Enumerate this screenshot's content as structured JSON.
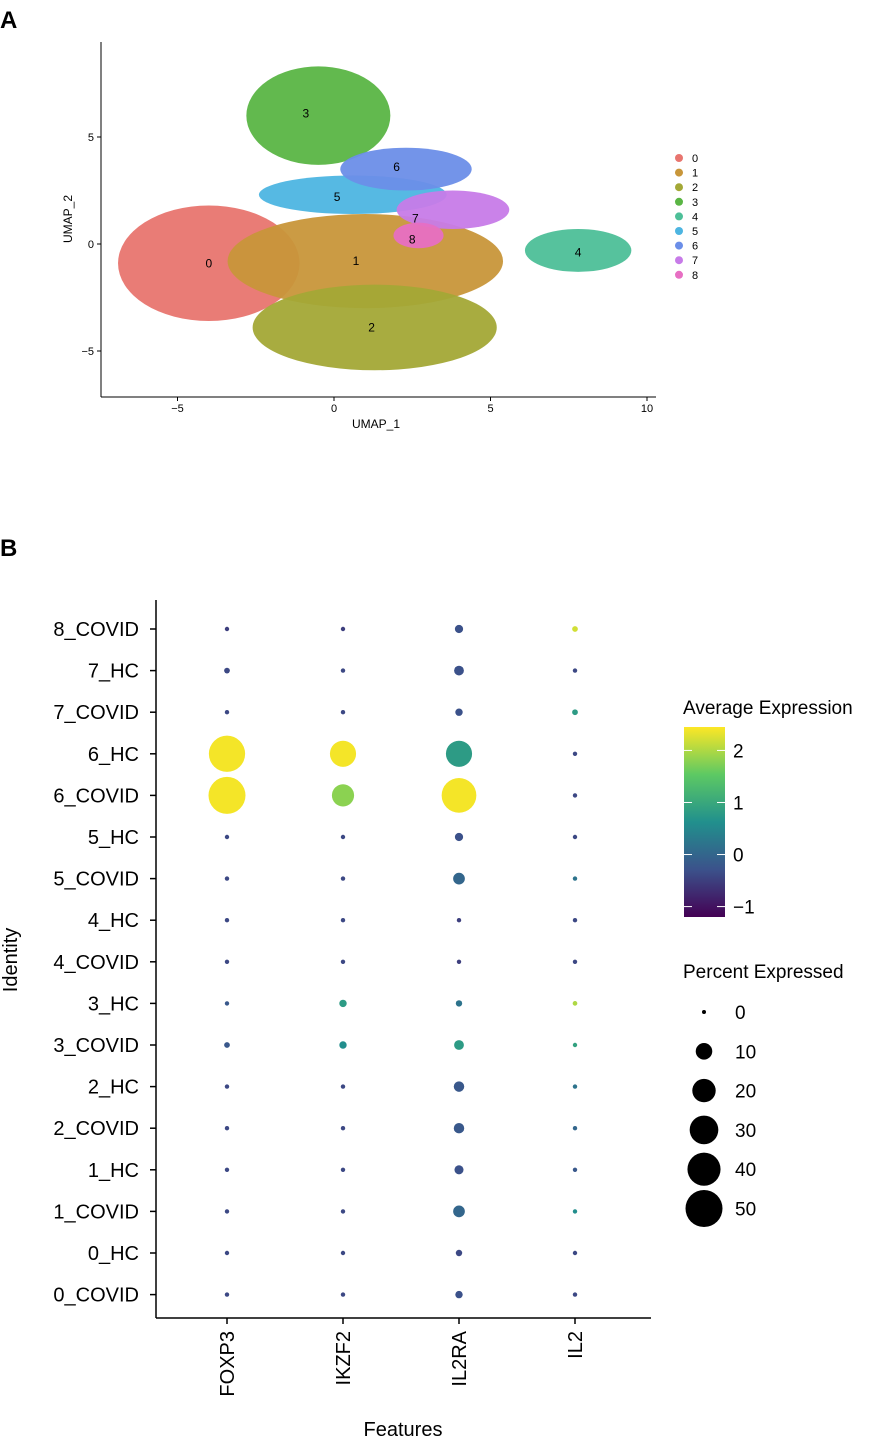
{
  "panel_a": {
    "label": "A",
    "chart_data": {
      "type": "scatter",
      "title": "",
      "xlabel": "UMAP_1",
      "ylabel": "UMAP_2",
      "xlim": [
        -7.5,
        10.5
      ],
      "ylim": [
        -7,
        9.5
      ],
      "xticks": [
        -5,
        0,
        5,
        10
      ],
      "yticks": [
        -5,
        0,
        5
      ],
      "legend_position": "right",
      "clusters": [
        {
          "id": "0",
          "color": "#e8756f",
          "cx": -4.0,
          "cy": -0.9,
          "rx": 2.9,
          "ry": 2.7,
          "label_x": -4.0,
          "label_y": -0.9
        },
        {
          "id": "1",
          "color": "#c8963a",
          "cx": 1.0,
          "cy": -0.8,
          "rx": 4.4,
          "ry": 2.2,
          "label_x": 0.7,
          "label_y": -0.8
        },
        {
          "id": "2",
          "color": "#a3a836",
          "cx": 1.3,
          "cy": -3.9,
          "rx": 3.9,
          "ry": 2.0,
          "label_x": 1.2,
          "label_y": -3.9
        },
        {
          "id": "3",
          "color": "#5ab544",
          "cx": -0.5,
          "cy": 6.0,
          "rx": 2.3,
          "ry": 2.3,
          "label_x": -0.9,
          "label_y": 6.1
        },
        {
          "id": "4",
          "color": "#4dbf98",
          "cx": 7.8,
          "cy": -0.3,
          "rx": 1.7,
          "ry": 1.0,
          "label_x": 7.8,
          "label_y": -0.4
        },
        {
          "id": "5",
          "color": "#4db5e1",
          "cx": 0.6,
          "cy": 2.3,
          "rx": 3.0,
          "ry": 0.9,
          "label_x": 0.1,
          "label_y": 2.2
        },
        {
          "id": "6",
          "color": "#6b8ee8",
          "cx": 2.3,
          "cy": 3.5,
          "rx": 2.1,
          "ry": 1.0,
          "label_x": 2.0,
          "label_y": 3.6
        },
        {
          "id": "7",
          "color": "#c77be8",
          "cx": 3.8,
          "cy": 1.6,
          "rx": 1.8,
          "ry": 0.9,
          "label_x": 2.6,
          "label_y": 1.2
        },
        {
          "id": "8",
          "color": "#e76fc3",
          "cx": 2.7,
          "cy": 0.4,
          "rx": 0.8,
          "ry": 0.6,
          "label_x": 2.5,
          "label_y": 0.2
        }
      ]
    }
  },
  "panel_b": {
    "label": "B",
    "chart_data": {
      "type": "dot",
      "title": "",
      "xlabel": "Features",
      "ylabel": "Identity",
      "features": [
        "FOXP3",
        "IKZF2",
        "IL2RA",
        "IL2"
      ],
      "identities": [
        "8_COVID",
        "7_HC",
        "7_COVID",
        "6_HC",
        "6_COVID",
        "5_HC",
        "5_COVID",
        "4_HC",
        "4_COVID",
        "3_HC",
        "3_COVID",
        "2_HC",
        "2_COVID",
        "1_HC",
        "1_COVID",
        "0_HC",
        "0_COVID"
      ],
      "avg_expression": [
        [
          -0.5,
          -0.5,
          -0.3,
          2.2
        ],
        [
          -0.4,
          -0.4,
          -0.3,
          -0.4
        ],
        [
          -0.4,
          -0.4,
          -0.3,
          0.8
        ],
        [
          2.4,
          2.4,
          0.8,
          -0.4
        ],
        [
          2.4,
          1.8,
          2.4,
          -0.4
        ],
        [
          -0.4,
          -0.4,
          -0.3,
          -0.4
        ],
        [
          -0.4,
          -0.4,
          0.0,
          0.2
        ],
        [
          -0.4,
          -0.4,
          -0.5,
          -0.4
        ],
        [
          -0.4,
          -0.4,
          -0.5,
          -0.4
        ],
        [
          -0.2,
          0.8,
          0.2,
          2.0
        ],
        [
          -0.2,
          0.6,
          0.8,
          0.9
        ],
        [
          -0.4,
          -0.4,
          -0.2,
          0.2
        ],
        [
          -0.4,
          -0.4,
          -0.2,
          0.0
        ],
        [
          -0.4,
          -0.4,
          -0.3,
          -0.2
        ],
        [
          -0.4,
          -0.4,
          0.0,
          0.6
        ],
        [
          -0.4,
          -0.4,
          -0.4,
          -0.4
        ],
        [
          -0.4,
          -0.4,
          -0.3,
          -0.4
        ]
      ],
      "pct_expressed": [
        [
          0.3,
          0.3,
          2.5,
          1.2
        ],
        [
          1.2,
          0.6,
          3.5,
          0.5
        ],
        [
          0.6,
          0.6,
          2.0,
          1.2
        ],
        [
          48,
          25,
          25,
          0.3
        ],
        [
          50,
          18,
          44,
          0.3
        ],
        [
          0.6,
          0.6,
          2.5,
          0.3
        ],
        [
          0.3,
          0.3,
          5.0,
          0.6
        ],
        [
          0.2,
          0.2,
          0.3,
          0.3
        ],
        [
          0.2,
          0.2,
          0.3,
          0.3
        ],
        [
          0.6,
          2.0,
          1.5,
          0.8
        ],
        [
          1.2,
          2.0,
          3.5,
          0.3
        ],
        [
          0.6,
          0.3,
          4.0,
          0.3
        ],
        [
          0.6,
          0.6,
          4.0,
          0.3
        ],
        [
          0.6,
          0.6,
          3.0,
          0.3
        ],
        [
          0.6,
          0.6,
          5.0,
          0.3
        ],
        [
          0.3,
          0.3,
          1.5,
          0.3
        ],
        [
          0.3,
          0.3,
          2.0,
          0.3
        ]
      ],
      "color_scale": {
        "title": "Average Expression",
        "min": -1.2,
        "max": 2.45,
        "ticks": [
          -1,
          0,
          1,
          2
        ],
        "tick_labels": [
          "−1",
          "0",
          "1",
          "2"
        ],
        "colors": [
          "#440154",
          "#3b528b",
          "#21908d",
          "#5dc963",
          "#fde725"
        ]
      },
      "size_scale": {
        "title": "Percent Expressed",
        "values": [
          0,
          10,
          20,
          30,
          40,
          50
        ],
        "labels": [
          "0",
          "10",
          "20",
          "30",
          "40",
          "50"
        ]
      }
    }
  }
}
